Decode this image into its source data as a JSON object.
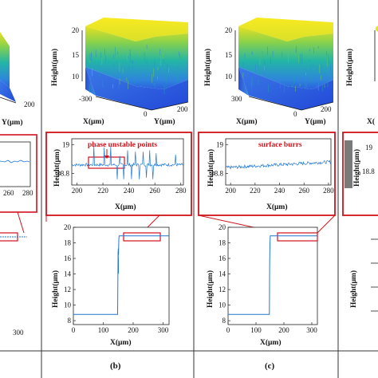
{
  "figure": {
    "caption_b": "(b)",
    "caption_c": "(c)"
  },
  "colors": {
    "trace": "#1f77d4",
    "annotation": "#d0121b",
    "surface_top": "#f2e21a",
    "surface_mid": "#22b3a4",
    "surface_low": "#2a6be0"
  },
  "chart_data": [
    {
      "id": "a_surface_partial",
      "type": "surface",
      "x_ticks": [],
      "y_ticks": [
        "200"
      ],
      "ylabel": "",
      "xlabel": "Y(μm)",
      "note": "cropped at left edge"
    },
    {
      "id": "a_zoom_partial",
      "type": "line",
      "x_ticks": [
        "260",
        "280"
      ],
      "y_ticks": [],
      "xlabel": "",
      "ylabel": ""
    },
    {
      "id": "a_profile_partial",
      "type": "line",
      "x_ticks": [
        "300"
      ],
      "xlabel": "",
      "ylabel": ""
    },
    {
      "id": "b_surface",
      "type": "surface",
      "zlabel": "Height(μm)",
      "z_ticks": [
        "20",
        "15",
        "10"
      ],
      "xlabel": "X(μm)",
      "x_ticks": [
        "-300"
      ],
      "ylabel": "Y(μm)",
      "y_ticks": [
        "200"
      ],
      "x_tick_zero": "0"
    },
    {
      "id": "b_zoom",
      "type": "line",
      "annotation": "phase unstable points",
      "xlabel": "X(μm)",
      "ylabel": "Height(μm)",
      "x_ticks": [
        "200",
        "220",
        "240",
        "260",
        "280"
      ],
      "y_ticks": [
        "19",
        "18.8"
      ],
      "xlim": [
        196,
        282
      ],
      "ylim": [
        18.72,
        19.04
      ],
      "baseline": 18.86,
      "spikes": [
        {
          "x": 213.0,
          "y": 18.99
        },
        {
          "x": 221.0,
          "y": 18.98
        },
        {
          "x": 226.0,
          "y": 18.985
        },
        {
          "x": 231.0,
          "y": 18.76
        },
        {
          "x": 233.0,
          "y": 18.92
        },
        {
          "x": 236.0,
          "y": 18.76
        },
        {
          "x": 239.0,
          "y": 18.96
        },
        {
          "x": 242.0,
          "y": 18.76
        },
        {
          "x": 245.0,
          "y": 18.95
        },
        {
          "x": 248.0,
          "y": 18.76
        },
        {
          "x": 251.0,
          "y": 18.95
        },
        {
          "x": 253.5,
          "y": 18.77
        },
        {
          "x": 256.0,
          "y": 18.96
        },
        {
          "x": 258.5,
          "y": 18.76
        },
        {
          "x": 261.0,
          "y": 18.94
        },
        {
          "x": 276.0,
          "y": 18.93
        }
      ]
    },
    {
      "id": "b_profile",
      "type": "line",
      "xlabel": "X(μm)",
      "ylabel": "Height(μm)",
      "x_ticks": [
        "0",
        "100",
        "200",
        "300"
      ],
      "y_ticks": [
        "20",
        "18",
        "16",
        "14",
        "12",
        "10",
        "8"
      ],
      "xlim": [
        0,
        320
      ],
      "ylim": [
        7.5,
        20
      ],
      "x": [
        0,
        148,
        149,
        149.5,
        150,
        151,
        152,
        153,
        320
      ],
      "y": [
        8.8,
        8.8,
        14.5,
        15.8,
        17.2,
        16.5,
        18.4,
        18.9,
        18.9
      ],
      "zoom_box_x": [
        200,
        280
      ]
    },
    {
      "id": "c_surface",
      "type": "surface",
      "zlabel": "Height(μm)",
      "z_ticks": [
        "20",
        "15",
        "10"
      ],
      "xlabel": "X(μm)",
      "x_ticks": [
        "300"
      ],
      "ylabel": "Y(μm)",
      "y_ticks": [
        "200"
      ],
      "x_tick_zero": "0"
    },
    {
      "id": "c_zoom",
      "type": "line",
      "annotation": "surface burrs",
      "xlabel": "X(μm)",
      "ylabel": "Height(μm)",
      "x_ticks": [
        "200",
        "220",
        "240",
        "260",
        "280"
      ],
      "y_ticks": [
        "19",
        "18.8"
      ],
      "xlim": [
        196,
        282
      ],
      "ylim": [
        18.72,
        19.04
      ],
      "baseline_start": 18.84,
      "baseline_end": 18.88
    },
    {
      "id": "c_profile",
      "type": "line",
      "xlabel": "X(μm)",
      "ylabel": "Height(μm)",
      "x_ticks": [
        "0",
        "100",
        "200",
        "300"
      ],
      "y_ticks": [
        "20",
        "18",
        "16",
        "14",
        "12",
        "10",
        "8"
      ],
      "xlim": [
        0,
        320
      ],
      "ylim": [
        7.5,
        20
      ],
      "x": [
        0,
        148,
        149,
        150,
        151,
        320
      ],
      "y": [
        8.8,
        8.8,
        15.0,
        17.8,
        18.9,
        18.9
      ],
      "zoom_box_x": [
        200,
        280
      ]
    },
    {
      "id": "d_surface_partial",
      "type": "surface",
      "zlabel": "Height(μm)",
      "x_ticks": [
        "X("
      ],
      "note": "cropped at right edge"
    },
    {
      "id": "d_zoom_partial",
      "type": "line",
      "ylabel": "Height(μm)",
      "y_ticks": [
        "19",
        "18.8"
      ]
    },
    {
      "id": "d_profile_partial",
      "type": "line",
      "ylabel": "Height(μm)"
    }
  ]
}
